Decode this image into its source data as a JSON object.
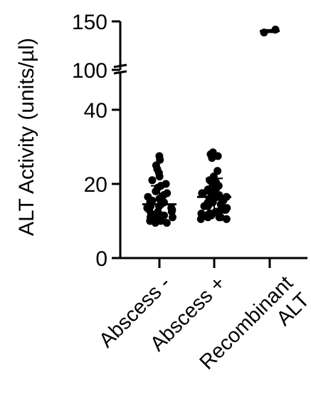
{
  "chart_data": {
    "type": "scatter",
    "ylabel": "ALT Activity (units/µl)",
    "y_axis_break": {
      "lower_segment": [
        0,
        50
      ],
      "upper_segment": [
        100,
        150
      ]
    },
    "yticks": [
      0,
      20,
      40,
      100,
      150
    ],
    "ytick_labels": [
      "0",
      "20",
      "40",
      "100",
      "150"
    ],
    "categories": [
      "Abscess -",
      "Abscess +",
      "Recombinant ALT"
    ],
    "category_label_lines": [
      [
        "Abscess -"
      ],
      [
        "Abscess +"
      ],
      [
        "Recombinant",
        "ALT"
      ]
    ],
    "series": [
      {
        "category": "Abscess -",
        "mean": 14.5,
        "sd": 5.0,
        "values": [
          27.5,
          26.5,
          25,
          24,
          23,
          22,
          21,
          20,
          19.5,
          19,
          18,
          17.5,
          17,
          16.5,
          16,
          15.5,
          15,
          15,
          14.5,
          14,
          14,
          13.5,
          13.5,
          13,
          13,
          12.5,
          12.5,
          12,
          12,
          11.5,
          11.5,
          11,
          11,
          11,
          10.5,
          10.5,
          10,
          10,
          10,
          9.5,
          9.5
        ]
      },
      {
        "category": "Abscess +",
        "mean": 16.5,
        "sd": 5.0,
        "values": [
          28.5,
          28,
          27.5,
          27,
          23.5,
          22,
          21,
          20.5,
          20,
          19.5,
          19,
          18.5,
          18,
          18,
          17.5,
          17.5,
          17,
          17,
          16.5,
          16.5,
          16,
          16,
          16,
          15.5,
          15.5,
          15,
          15,
          15,
          14.5,
          14.5,
          14,
          14,
          14,
          13.5,
          13.5,
          13,
          13,
          13,
          12.5,
          12.5,
          12,
          12,
          12,
          11.5,
          11.5,
          11,
          11,
          11,
          10.5,
          10.5
        ]
      },
      {
        "category": "Recombinant ALT",
        "mean": 140,
        "sd": 1.3,
        "values": [
          138.5,
          141.5
        ]
      }
    ],
    "marker_color": "#000000"
  }
}
